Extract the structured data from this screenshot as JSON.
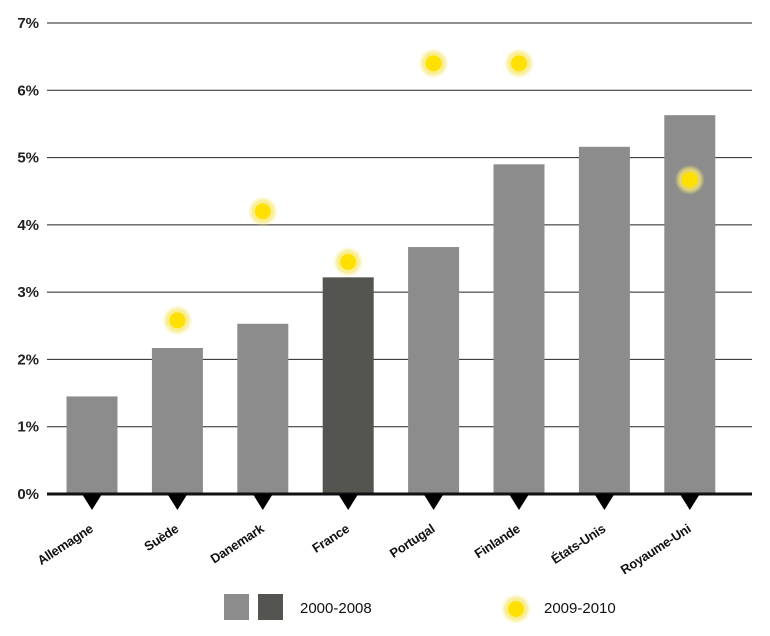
{
  "chart_data": {
    "type": "bar",
    "categories": [
      "Allemagne",
      "Suède",
      "Danemark",
      "France",
      "Portugal",
      "Finlande",
      "États-Unis",
      "Royaume-Uni"
    ],
    "series": [
      {
        "name": "2000-2008",
        "type": "bar",
        "values": [
          1.45,
          2.17,
          2.53,
          3.22,
          3.67,
          4.9,
          5.16,
          5.63
        ]
      },
      {
        "name": "2009-2010",
        "type": "scatter",
        "values": [
          null,
          2.58,
          4.2,
          3.45,
          6.4,
          6.4,
          null,
          4.67
        ]
      }
    ],
    "highlight_category": "France",
    "y_ticks": [
      0,
      1,
      2,
      3,
      4,
      5,
      6,
      7
    ],
    "y_tick_format": "%",
    "ylim": [
      0,
      7
    ],
    "grid": true,
    "legend_position": "bottom",
    "colors": {
      "bar": "#8c8c8c",
      "bar_highlight": "#545450",
      "marker_core": "#ffe000",
      "marker_glow": "#f2e25a",
      "axis": "#111111",
      "grid": "#222222",
      "pointer": "#000000"
    }
  },
  "legend": {
    "bars_label": "2000-2008",
    "markers_label": "2009-2010"
  }
}
